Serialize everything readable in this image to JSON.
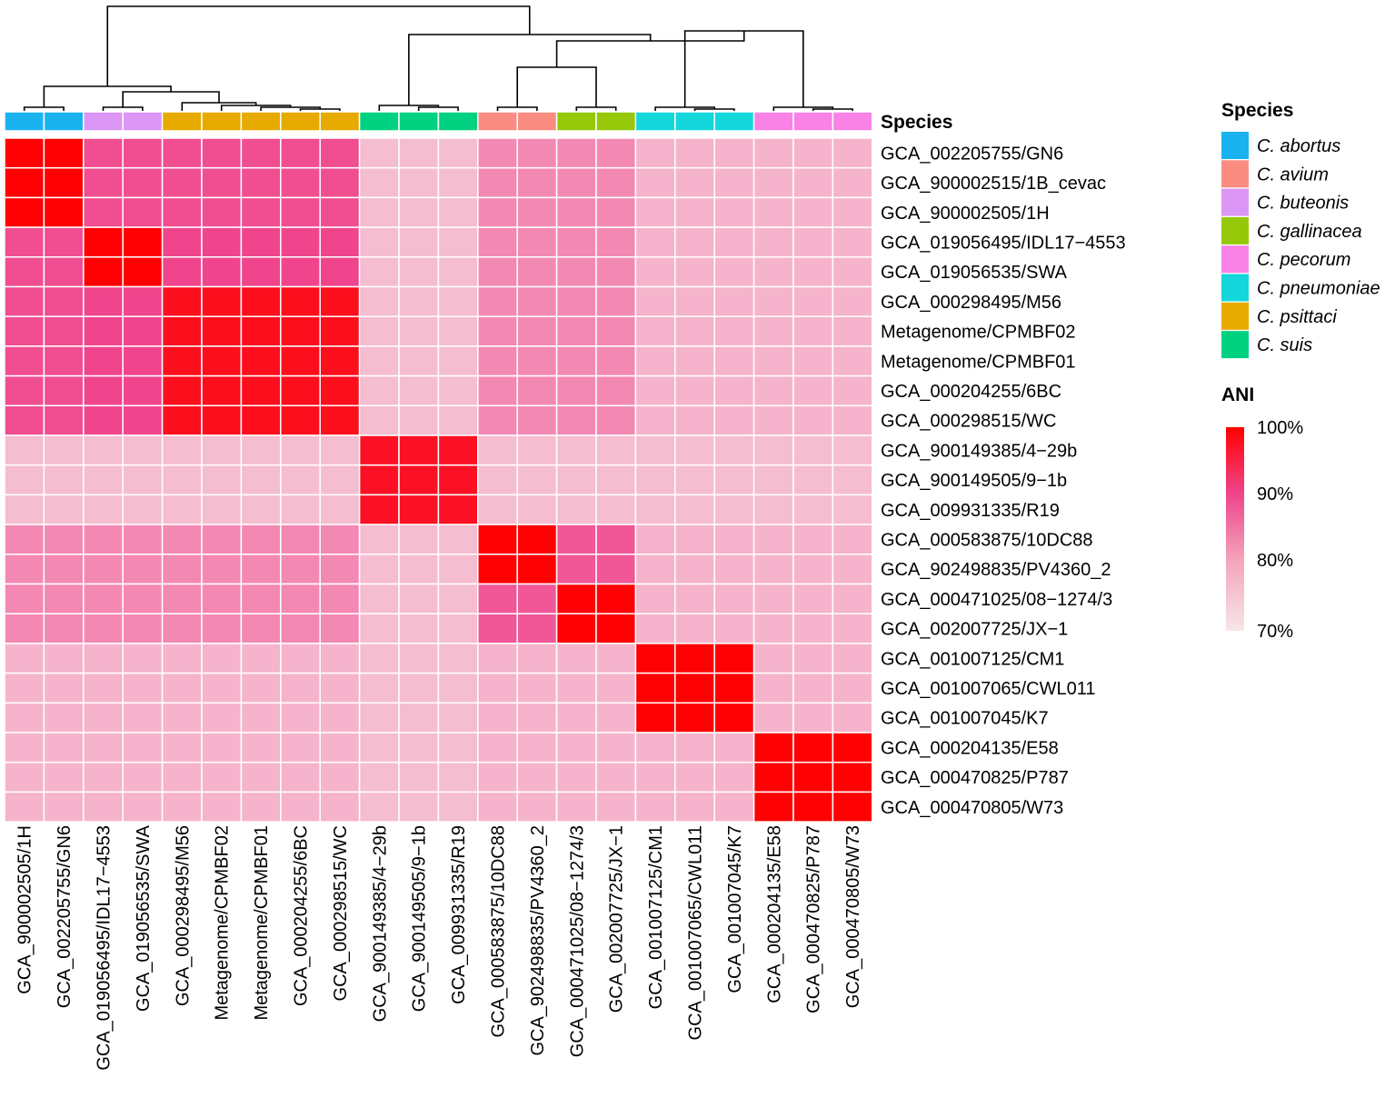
{
  "chart_data": {
    "type": "heatmap",
    "title": "",
    "annotation_label": "Species",
    "rows": [
      "GCA_002205755/GN6",
      "GCA_900002515/1B_cevac",
      "GCA_900002505/1H",
      "GCA_019056495/IDL17−4553",
      "GCA_019056535/SWA",
      "GCA_000298495/M56",
      "Metagenome/CPMBF02",
      "Metagenome/CPMBF01",
      "GCA_000204255/6BC",
      "GCA_000298515/WC",
      "GCA_900149385/4−29b",
      "GCA_900149505/9−1b",
      "GCA_009931335/R19",
      "GCA_000583875/10DC88",
      "GCA_902498835/PV4360_2",
      "GCA_000471025/08−1274/3",
      "GCA_002007725/JX−1",
      "GCA_001007125/CM1",
      "GCA_001007065/CWL011",
      "GCA_001007045/K7",
      "GCA_000204135/E58",
      "GCA_000470825/P787",
      "GCA_000470805/W73"
    ],
    "columns": [
      "GCA_900002505/1H",
      "GCA_002205755/GN6",
      "GCA_019056495/IDL17−4553",
      "GCA_019056535/SWA",
      "GCA_000298495/M56",
      "Metagenome/CPMBF02",
      "Metagenome/CPMBF01",
      "GCA_000204255/6BC",
      "GCA_000298515/WC",
      "GCA_900149385/4−29b",
      "GCA_900149505/9−1b",
      "GCA_009931335/R19",
      "GCA_000583875/10DC88",
      "GCA_902498835/PV4360_2",
      "GCA_000471025/08−1274/3",
      "GCA_002007725/JX−1",
      "GCA_001007125/CM1",
      "GCA_001007065/CWL011",
      "GCA_001007045/K7",
      "GCA_000204135/E58",
      "GCA_000470825/P787",
      "GCA_000470805/W73"
    ],
    "row_groups": [
      "ab",
      "ab",
      "ab",
      "bu",
      "bu",
      "ps",
      "ps",
      "ps",
      "ps",
      "ps",
      "su",
      "su",
      "su",
      "av",
      "av",
      "ga",
      "ga",
      "pn",
      "pn",
      "pn",
      "pe",
      "pe",
      "pe"
    ],
    "column_groups": [
      "ab",
      "ab",
      "bu",
      "bu",
      "ps",
      "ps",
      "ps",
      "ps",
      "ps",
      "su",
      "su",
      "su",
      "av",
      "av",
      "ga",
      "ga",
      "pn",
      "pn",
      "pn",
      "pe",
      "pe",
      "pe"
    ],
    "group_ani": {
      "ab": {
        "ab": 99.8,
        "bu": 87,
        "ps": 87,
        "su": 74,
        "av": 80,
        "ga": 80,
        "pn": 75,
        "pe": 75
      },
      "bu": {
        "ab": 87,
        "bu": 99.8,
        "ps": 88,
        "su": 74,
        "av": 80,
        "ga": 80,
        "pn": 75,
        "pe": 75
      },
      "ps": {
        "ab": 87,
        "bu": 88,
        "ps": 97.5,
        "su": 74,
        "av": 80,
        "ga": 80,
        "pn": 75,
        "pe": 75
      },
      "su": {
        "ab": 74,
        "bu": 74,
        "ps": 74,
        "su": 97,
        "av": 74,
        "ga": 74,
        "pn": 74,
        "pe": 74
      },
      "av": {
        "ab": 80,
        "bu": 80,
        "ps": 80,
        "su": 74,
        "av": 99.8,
        "ga": 86,
        "pn": 75,
        "pe": 75
      },
      "ga": {
        "ab": 80,
        "bu": 80,
        "ps": 80,
        "su": 74,
        "av": 86,
        "ga": 99.8,
        "pn": 75,
        "pe": 75
      },
      "pn": {
        "ab": 75,
        "bu": 75,
        "ps": 75,
        "su": 74,
        "av": 75,
        "ga": 75,
        "pn": 99.8,
        "pe": 75
      },
      "pe": {
        "ab": 75,
        "bu": 75,
        "ps": 75,
        "su": 74,
        "av": 75,
        "ga": 75,
        "pn": 75,
        "pe": 99.8
      }
    },
    "color_scale": {
      "min": 70,
      "max": 100,
      "low_color": "#f7dfe3",
      "mid_color": "#f0458c",
      "high_color": "#ff0000"
    },
    "scale_label": "ANI",
    "scale_ticks": [
      "100%",
      "90%",
      "80%",
      "70%"
    ]
  },
  "legend": {
    "title": "Species",
    "items": [
      {
        "key": "ab",
        "label": "C. abortus",
        "color": "#1ab3f0"
      },
      {
        "key": "av",
        "label": "C. avium",
        "color": "#fa8c82"
      },
      {
        "key": "bu",
        "label": "C. buteonis",
        "color": "#dc96f5"
      },
      {
        "key": "ga",
        "label": "C. gallinacea",
        "color": "#96c80a"
      },
      {
        "key": "pe",
        "label": "C. pecorum",
        "color": "#fa82e6"
      },
      {
        "key": "pn",
        "label": "C. pneumoniae",
        "color": "#14d7dc"
      },
      {
        "key": "ps",
        "label": "C. psittaci",
        "color": "#e6aa00"
      },
      {
        "key": "su",
        "label": "C. suis",
        "color": "#00d282"
      }
    ]
  }
}
